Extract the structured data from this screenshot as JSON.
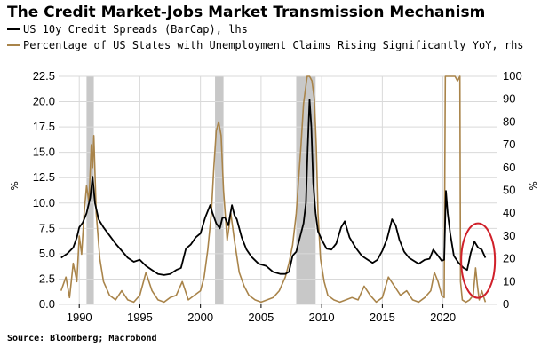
{
  "title": "The Credit Market-Jobs Market Transmission Mechanism",
  "source": "Source: Bloomberg; Macrobond",
  "chart_data": {
    "type": "line",
    "legend_position": "top-left",
    "grid": true,
    "x_range": [
      1988.3,
      2024.5
    ],
    "x_ticks": [
      1990,
      1995,
      2000,
      2005,
      2010,
      2015,
      2020
    ],
    "left_axis": {
      "label": "%",
      "range": [
        0,
        22.5
      ],
      "ticks": [
        0.0,
        2.5,
        5.0,
        7.5,
        10.0,
        12.5,
        15.0,
        17.5,
        20.0,
        22.5
      ],
      "tick_labels": [
        "0.0",
        "2.5",
        "5.0",
        "7.5",
        "10.0",
        "12.5",
        "15.0",
        "17.5",
        "20.0",
        "22.5"
      ]
    },
    "right_axis": {
      "label": "%",
      "range": [
        0,
        100
      ],
      "ticks": [
        0,
        10,
        20,
        30,
        40,
        50,
        60,
        70,
        80,
        90,
        100
      ],
      "tick_labels": [
        "0",
        "10",
        "20",
        "30",
        "40",
        "50",
        "60",
        "70",
        "80",
        "90",
        "100"
      ]
    },
    "recessions": [
      [
        1990.6,
        1991.2
      ],
      [
        2001.2,
        2001.9
      ],
      [
        2007.9,
        2009.5
      ]
    ],
    "annotation": {
      "type": "ellipse",
      "x": 2022.9,
      "y_left": 4.5,
      "color": "#d0202a"
    },
    "series": [
      {
        "name": "US 10y Credit Spreads (BarCap), lhs",
        "axis": "left",
        "color": "#000000",
        "x": [
          1988.5,
          1989.0,
          1989.5,
          1989.8,
          1990.0,
          1990.3,
          1990.6,
          1990.9,
          1991.1,
          1991.3,
          1991.6,
          1992.0,
          1992.5,
          1993.0,
          1993.5,
          1994.0,
          1994.5,
          1995.0,
          1995.5,
          1996.0,
          1996.5,
          1997.0,
          1997.5,
          1998.0,
          1998.4,
          1998.8,
          1999.2,
          1999.6,
          2000.0,
          2000.4,
          2000.8,
          2001.0,
          2001.3,
          2001.6,
          2001.8,
          2002.0,
          2002.3,
          2002.6,
          2002.8,
          2003.0,
          2003.4,
          2003.8,
          2004.2,
          2004.8,
          2005.4,
          2006.0,
          2006.6,
          2007.0,
          2007.3,
          2007.6,
          2007.9,
          2008.2,
          2008.5,
          2008.7,
          2008.85,
          2009.0,
          2009.15,
          2009.3,
          2009.5,
          2009.7,
          2010.0,
          2010.4,
          2010.8,
          2011.2,
          2011.6,
          2011.9,
          2012.3,
          2012.8,
          2013.3,
          2013.8,
          2014.2,
          2014.6,
          2015.0,
          2015.4,
          2015.8,
          2016.1,
          2016.4,
          2016.8,
          2017.2,
          2017.6,
          2018.0,
          2018.5,
          2018.9,
          2019.2,
          2019.6,
          2019.9,
          2020.1,
          2020.25,
          2020.4,
          2020.6,
          2020.9,
          2021.3,
          2021.7,
          2022.0,
          2022.3,
          2022.6,
          2022.9,
          2023.2,
          2023.5
        ],
        "values": [
          4.6,
          5.0,
          5.6,
          6.6,
          7.6,
          8.1,
          9.0,
          10.5,
          12.6,
          10.0,
          8.4,
          7.6,
          6.8,
          6.0,
          5.3,
          4.6,
          4.2,
          4.4,
          3.8,
          3.4,
          3.0,
          2.9,
          3.0,
          3.4,
          3.6,
          5.5,
          5.9,
          6.6,
          7.0,
          8.6,
          9.8,
          9.0,
          8.0,
          7.5,
          8.5,
          8.6,
          7.8,
          9.8,
          8.8,
          8.4,
          6.6,
          5.4,
          4.7,
          4.0,
          3.8,
          3.2,
          3.0,
          3.0,
          3.2,
          4.8,
          5.2,
          6.6,
          8.0,
          10.0,
          15.5,
          20.2,
          17.5,
          12.0,
          9.0,
          7.2,
          6.4,
          5.5,
          5.4,
          6.0,
          7.6,
          8.2,
          6.6,
          5.6,
          4.8,
          4.4,
          4.1,
          4.4,
          5.3,
          6.5,
          8.4,
          7.8,
          6.4,
          5.2,
          4.6,
          4.3,
          4.0,
          4.4,
          4.5,
          5.4,
          4.8,
          4.3,
          4.4,
          11.2,
          9.0,
          7.0,
          4.8,
          4.1,
          3.6,
          3.4,
          5.1,
          6.2,
          5.6,
          5.4,
          4.6
        ]
      },
      {
        "name": "Percentage of US States with Unemployment Claims Rising Significantly YoY, rhs",
        "axis": "right",
        "color": "#a9844a",
        "x": [
          1988.5,
          1988.9,
          1989.2,
          1989.5,
          1989.8,
          1990.0,
          1990.2,
          1990.4,
          1990.6,
          1990.8,
          1991.0,
          1991.1,
          1991.2,
          1991.4,
          1991.7,
          1992.0,
          1992.5,
          1993.0,
          1993.5,
          1994.0,
          1994.5,
          1995.0,
          1995.5,
          1996.0,
          1996.5,
          1997.0,
          1997.5,
          1998.0,
          1998.5,
          1999.0,
          1999.5,
          2000.0,
          2000.3,
          2000.6,
          2000.9,
          2001.1,
          2001.3,
          2001.5,
          2001.7,
          2001.9,
          2002.2,
          2002.5,
          2002.8,
          2003.2,
          2003.6,
          2004.0,
          2004.5,
          2005.0,
          2005.5,
          2006.0,
          2006.5,
          2007.0,
          2007.3,
          2007.6,
          2007.9,
          2008.1,
          2008.3,
          2008.5,
          2008.7,
          2008.8,
          2008.9,
          2009.0,
          2009.2,
          2009.4,
          2009.55,
          2009.7,
          2009.9,
          2010.2,
          2010.5,
          2011.0,
          2011.5,
          2012.0,
          2012.5,
          2013.0,
          2013.5,
          2014.0,
          2014.5,
          2015.0,
          2015.5,
          2016.0,
          2016.5,
          2017.0,
          2017.5,
          2018.0,
          2018.5,
          2019.0,
          2019.3,
          2019.6,
          2019.9,
          2020.1,
          2020.2,
          2020.5,
          2020.8,
          2021.0,
          2021.2,
          2021.4,
          2021.45,
          2021.6,
          2021.9,
          2022.2,
          2022.5,
          2022.7,
          2022.85,
          2023.0,
          2023.2,
          2023.5
        ],
        "values": [
          6,
          12,
          3,
          18,
          10,
          30,
          22,
          40,
          52,
          45,
          70,
          60,
          74,
          40,
          20,
          10,
          4,
          2,
          6,
          2,
          1,
          4,
          14,
          6,
          2,
          1,
          3,
          4,
          10,
          2,
          4,
          6,
          12,
          24,
          40,
          60,
          76,
          80,
          74,
          50,
          28,
          40,
          28,
          14,
          8,
          4,
          2,
          1,
          2,
          3,
          6,
          12,
          18,
          26,
          40,
          55,
          70,
          88,
          96,
          100,
          100,
          100,
          98,
          90,
          70,
          40,
          20,
          10,
          4,
          2,
          1,
          2,
          3,
          2,
          8,
          4,
          1,
          3,
          12,
          8,
          4,
          6,
          2,
          1,
          3,
          6,
          14,
          10,
          4,
          3,
          100,
          100,
          100,
          100,
          98,
          100,
          10,
          2,
          1,
          2,
          4,
          16,
          8,
          2,
          6,
          1
        ]
      }
    ]
  }
}
